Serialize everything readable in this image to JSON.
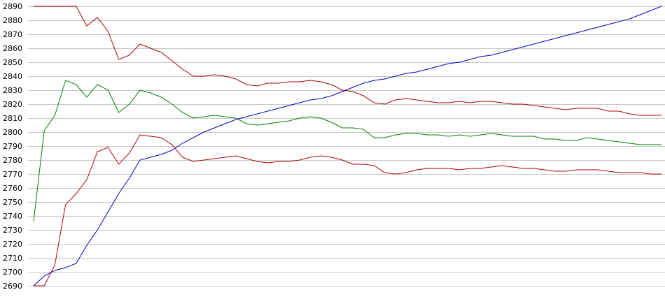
{
  "chart_data": {
    "type": "line",
    "categories": [
      null,
      null,
      null,
      null,
      null,
      null,
      null,
      null,
      null,
      null,
      null,
      null,
      null,
      null,
      null,
      null,
      null,
      null,
      null,
      null,
      null,
      null,
      null,
      null,
      null,
      null,
      null,
      null,
      null,
      null,
      null,
      null,
      null,
      null,
      null,
      null,
      null,
      null,
      null,
      null,
      null,
      null,
      null,
      null,
      null,
      null,
      null,
      null,
      null,
      null,
      null,
      null,
      null,
      null,
      null,
      null,
      null,
      null,
      null,
      null
    ],
    "series": [
      {
        "color": "#b00000",
        "values": [
          2890,
          2890,
          2890,
          2890,
          2890,
          2876,
          2882,
          2872,
          2852,
          2855,
          2863,
          2860,
          2857,
          2851,
          2845,
          2840,
          2840,
          2841,
          2840,
          2838,
          2834,
          2833,
          2835,
          2835,
          2836,
          2836,
          2837,
          2836,
          2834,
          2830,
          2829,
          2826,
          2821,
          2820,
          2823,
          2824,
          2823,
          2822,
          2821,
          2821,
          2822,
          2821,
          2822,
          2822,
          2821,
          2820,
          2820,
          2819,
          2818,
          2817,
          2816,
          2817,
          2817,
          2817,
          2815,
          2815,
          2813,
          2812,
          2812,
          2812
        ]
      },
      {
        "color": "#008000",
        "values": [
          2736,
          2801,
          2812,
          2837,
          2834,
          2825,
          2834,
          2830,
          2814,
          2820,
          2830,
          2828,
          2825,
          2820,
          2814,
          2810,
          2811,
          2812,
          2811,
          2810,
          2806,
          2805,
          2806,
          2807,
          2808,
          2810,
          2811,
          2810,
          2807,
          2803,
          2803,
          2802,
          2796,
          2796,
          2798,
          2799,
          2799,
          2798,
          2798,
          2797,
          2798,
          2797,
          2798,
          2799,
          2798,
          2797,
          2797,
          2797,
          2795,
          2795,
          2794,
          2794,
          2796,
          2795,
          2794,
          2793,
          2792,
          2791,
          2791,
          2791
        ]
      },
      {
        "color": "#b00000",
        "values": [
          2690,
          2690,
          2705,
          2748,
          2756,
          2766,
          2786,
          2789,
          2777,
          2785,
          2798,
          2797,
          2796,
          2791,
          2782,
          2779,
          2780,
          2781,
          2782,
          2783,
          2781,
          2779,
          2778,
          2779,
          2779,
          2780,
          2782,
          2783,
          2782,
          2780,
          2777,
          2777,
          2776,
          2771,
          2770,
          2771,
          2773,
          2774,
          2774,
          2774,
          2773,
          2774,
          2774,
          2775,
          2776,
          2775,
          2774,
          2774,
          2773,
          2772,
          2772,
          2773,
          2773,
          2773,
          2772,
          2771,
          2771,
          2771,
          2770,
          2770
        ]
      },
      {
        "color": "#0000c0",
        "values": [
          2690,
          2697,
          2701,
          2703,
          2706,
          2719,
          2730,
          2743,
          2756,
          2767,
          2780,
          2782,
          2784,
          2787,
          2792,
          2796,
          2800,
          2803,
          2806,
          2809,
          2811,
          2813,
          2815,
          2817,
          2819,
          2821,
          2823,
          2824,
          2826,
          2829,
          2832,
          2835,
          2837,
          2838,
          2840,
          2842,
          2843,
          2845,
          2847,
          2849,
          2850,
          2852,
          2854,
          2855,
          2857,
          2859,
          2861,
          2863,
          2865,
          2867,
          2869,
          2871,
          2873,
          2875,
          2877,
          2879,
          2881,
          2884,
          2887,
          2890
        ]
      }
    ],
    "ylim": [
      2690,
      2890
    ],
    "yticks": [
      2690,
      2700,
      2710,
      2720,
      2730,
      2740,
      2750,
      2760,
      2770,
      2780,
      2790,
      2800,
      2810,
      2820,
      2830,
      2840,
      2850,
      2860,
      2870,
      2880,
      2890
    ],
    "grid": true
  }
}
